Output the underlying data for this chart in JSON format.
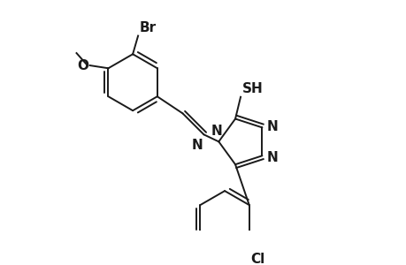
{
  "background_color": "#ffffff",
  "line_color": "#1a1a1a",
  "line_width": 1.4,
  "font_size": 10,
  "figsize": [
    4.6,
    3.0
  ],
  "dpi": 100,
  "xlim": [
    0,
    10
  ],
  "ylim": [
    0,
    6.5
  ]
}
